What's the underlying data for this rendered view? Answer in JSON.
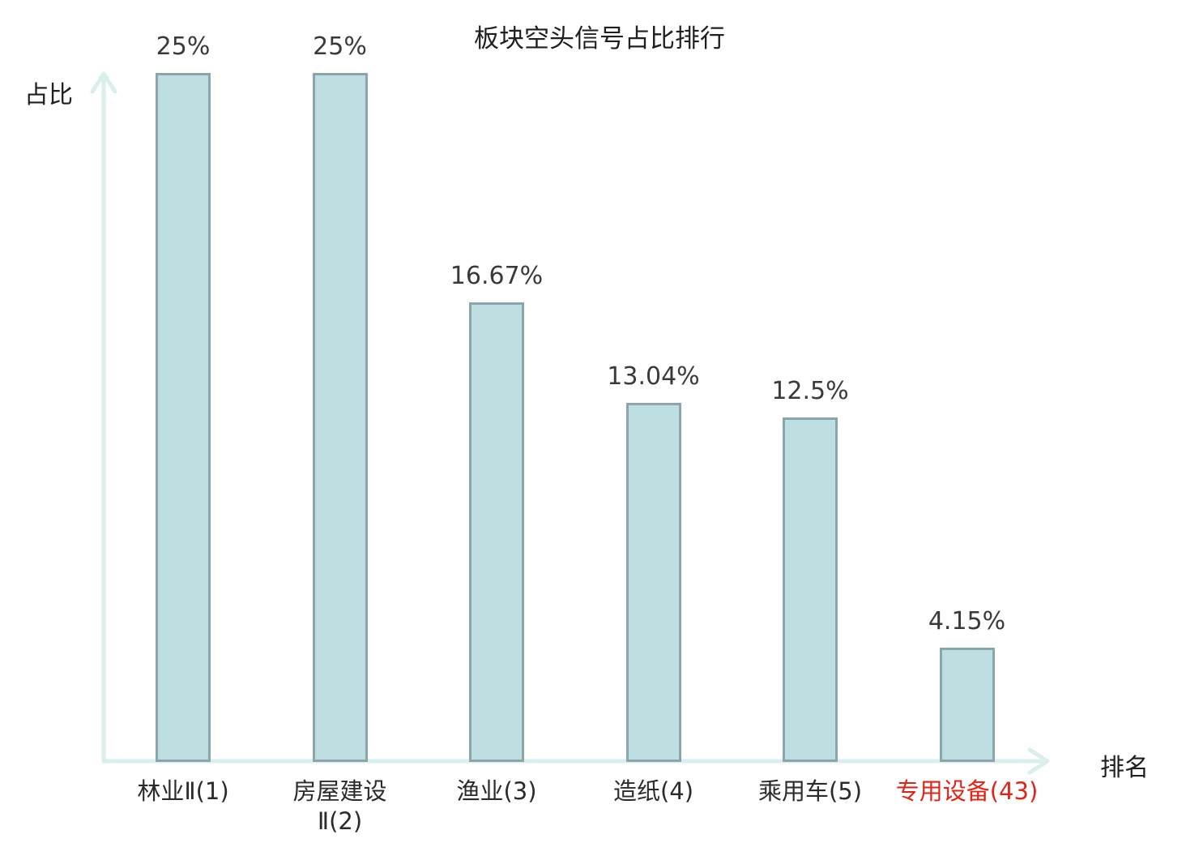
{
  "chart_data": {
    "type": "bar",
    "title": "板块空头信号占比排行",
    "xlabel": "排名",
    "ylabel": "占比",
    "categories": [
      "林业Ⅱ(1)",
      "房屋建设\nⅡ(2)",
      "渔业(3)",
      "造纸(4)",
      "乘用车(5)",
      "专用设备(43)"
    ],
    "values": [
      25,
      25,
      16.67,
      13.04,
      12.5,
      4.15
    ],
    "value_labels": [
      "25%",
      "25%",
      "16.67%",
      "13.04%",
      "12.5%",
      "4.15%"
    ],
    "highlight_index": 5,
    "ylim": [
      0,
      25
    ],
    "grid": false,
    "legend": "none",
    "colors": {
      "bar_fill": "#bedfe2",
      "bar_border": "#8ca5aa",
      "axis": "#dbeeee",
      "value_label": "#3a3a3a",
      "category_label": "#2b2b2b",
      "highlight": "#e02417",
      "title": "#1f1f1f"
    }
  }
}
